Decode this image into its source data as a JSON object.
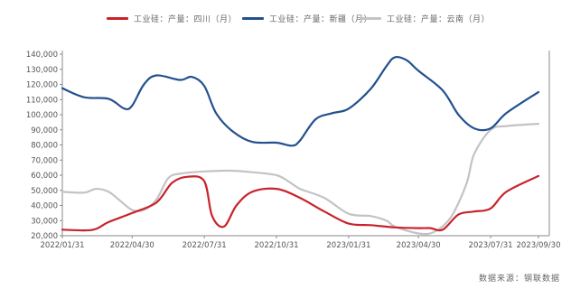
{
  "chart_data": {
    "type": "line",
    "title": "",
    "xlabel": "",
    "ylabel": "",
    "ylim": [
      20000,
      140000
    ],
    "y_ticks": [
      "20,000",
      "30,000",
      "40,000",
      "50,000",
      "60,000",
      "70,000",
      "80,000",
      "90,000",
      "100,000",
      "110,000",
      "120,000",
      "130,000",
      "140,000"
    ],
    "x_tick_labels": [
      "2022/01/31",
      "2022/04/30",
      "2022/07/31",
      "2022/10/31",
      "2023/01/31",
      "2023/04/30",
      "2023/07/31",
      "2023/09/30"
    ],
    "x_tick_dates": [
      "2022-01-31",
      "2022-04-30",
      "2022-07-31",
      "2022-10-31",
      "2023-01-31",
      "2023-04-30",
      "2023-07-31",
      "2023-09-30"
    ],
    "grid": false,
    "legend_position": "top",
    "series": [
      {
        "name": "工业硅：产量：四川（月）",
        "color": "#c8232c",
        "points": [
          [
            "2022-01-31",
            24000
          ],
          [
            "2022-02-28",
            23500
          ],
          [
            "2022-03-15",
            24500
          ],
          [
            "2022-03-31",
            29000
          ],
          [
            "2022-04-30",
            35000
          ],
          [
            "2022-05-31",
            42000
          ],
          [
            "2022-06-20",
            55000
          ],
          [
            "2022-07-10",
            59000
          ],
          [
            "2022-07-31",
            56000
          ],
          [
            "2022-08-10",
            33000
          ],
          [
            "2022-08-25",
            26000
          ],
          [
            "2022-09-10",
            40000
          ],
          [
            "2022-09-30",
            49000
          ],
          [
            "2022-10-31",
            51000
          ],
          [
            "2022-11-30",
            45000
          ],
          [
            "2022-12-31",
            36000
          ],
          [
            "2023-01-31",
            28000
          ],
          [
            "2023-02-28",
            27000
          ],
          [
            "2023-03-31",
            25500
          ],
          [
            "2023-04-30",
            25000
          ],
          [
            "2023-05-15",
            25000
          ],
          [
            "2023-05-31",
            24000
          ],
          [
            "2023-06-20",
            34000
          ],
          [
            "2023-07-10",
            36000
          ],
          [
            "2023-07-31",
            38000
          ],
          [
            "2023-08-20",
            49000
          ],
          [
            "2023-09-30",
            59500
          ]
        ]
      },
      {
        "name": "工业硅：产量：新疆（月）",
        "color": "#24508f",
        "points": [
          [
            "2022-01-31",
            117500
          ],
          [
            "2022-02-28",
            111500
          ],
          [
            "2022-03-31",
            110500
          ],
          [
            "2022-04-20",
            104000
          ],
          [
            "2022-04-30",
            106000
          ],
          [
            "2022-05-15",
            120000
          ],
          [
            "2022-05-31",
            126000
          ],
          [
            "2022-06-30",
            123000
          ],
          [
            "2022-07-15",
            125000
          ],
          [
            "2022-07-31",
            119000
          ],
          [
            "2022-08-15",
            101000
          ],
          [
            "2022-09-05",
            89000
          ],
          [
            "2022-09-30",
            82000
          ],
          [
            "2022-10-31",
            81500
          ],
          [
            "2022-11-20",
            79500
          ],
          [
            "2022-11-30",
            83000
          ],
          [
            "2022-12-20",
            97000
          ],
          [
            "2023-01-10",
            101000
          ],
          [
            "2023-01-31",
            104000
          ],
          [
            "2023-02-28",
            117000
          ],
          [
            "2023-03-20",
            132000
          ],
          [
            "2023-03-31",
            138000
          ],
          [
            "2023-04-15",
            136000
          ],
          [
            "2023-04-30",
            129000
          ],
          [
            "2023-05-31",
            116000
          ],
          [
            "2023-06-20",
            100000
          ],
          [
            "2023-07-10",
            91000
          ],
          [
            "2023-07-31",
            91000
          ],
          [
            "2023-08-20",
            101000
          ],
          [
            "2023-09-30",
            115000
          ]
        ]
      },
      {
        "name": "工业硅：产量：云南（月）",
        "color": "#c3c3c3",
        "points": [
          [
            "2022-01-31",
            49000
          ],
          [
            "2022-02-28",
            48500
          ],
          [
            "2022-03-15",
            51000
          ],
          [
            "2022-03-31",
            49000
          ],
          [
            "2022-04-15",
            43000
          ],
          [
            "2022-04-30",
            37000
          ],
          [
            "2022-05-15",
            37000
          ],
          [
            "2022-05-31",
            44000
          ],
          [
            "2022-06-15",
            58000
          ],
          [
            "2022-06-30",
            61000
          ],
          [
            "2022-07-31",
            62500
          ],
          [
            "2022-08-31",
            63000
          ],
          [
            "2022-09-30",
            62000
          ],
          [
            "2022-10-31",
            60000
          ],
          [
            "2022-11-15",
            56000
          ],
          [
            "2022-11-30",
            51000
          ],
          [
            "2022-12-31",
            45000
          ],
          [
            "2023-01-31",
            34500
          ],
          [
            "2023-02-28",
            33000
          ],
          [
            "2023-03-20",
            30000
          ],
          [
            "2023-03-31",
            26000
          ],
          [
            "2023-04-30",
            21500
          ],
          [
            "2023-05-20",
            22500
          ],
          [
            "2023-06-10",
            32000
          ],
          [
            "2023-06-30",
            54000
          ],
          [
            "2023-07-10",
            74000
          ],
          [
            "2023-07-31",
            90000
          ],
          [
            "2023-08-20",
            92500
          ],
          [
            "2023-09-30",
            94000
          ]
        ]
      }
    ]
  },
  "footer": {
    "source": "数据来源：钢联数据"
  }
}
